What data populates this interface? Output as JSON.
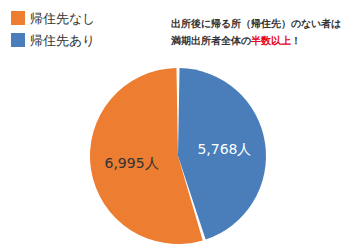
{
  "chart_data": {
    "type": "pie",
    "categories": [
      "帰住先なし",
      "帰住先あり"
    ],
    "values": [
      6995,
      5768
    ],
    "value_labels": [
      "6,995人",
      "5,768人"
    ],
    "colors": [
      "#ed7d31",
      "#4a7ebb"
    ],
    "legend": "top-left",
    "data_labels": true,
    "annotation": {
      "lines": [
        "出所後に帰る所（帰住先）のない者は",
        "満期出所者全体の半数以上！"
      ],
      "highlight": "半数以上"
    }
  }
}
